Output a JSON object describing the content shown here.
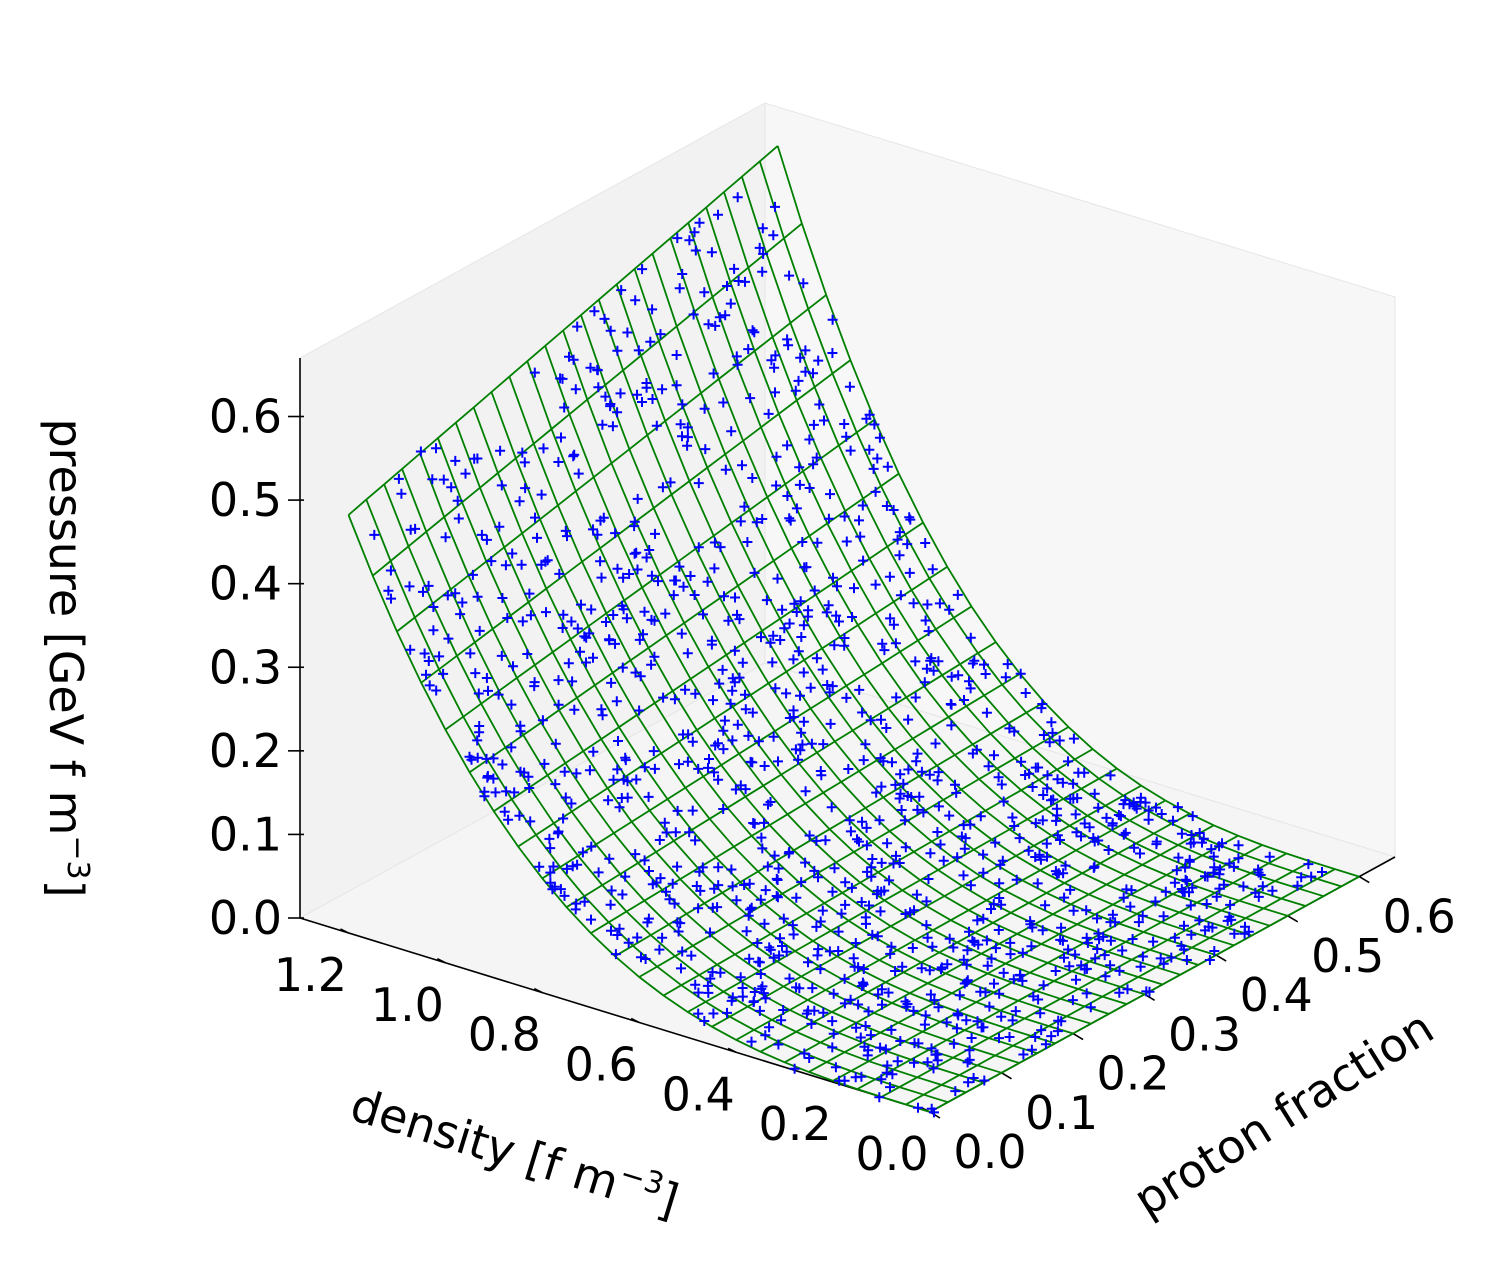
{
  "chart_data": {
    "type": "surface3d-scatter",
    "title": "",
    "xlabel": "density [f m^-3]",
    "ylabel": "proton fraction",
    "zlabel": "pressure [GeV f m^-3]",
    "axes_labels": {
      "x": {
        "main": "density [f m",
        "sup": "−3",
        "close": "]"
      },
      "y": {
        "main": "proton fraction"
      },
      "z": {
        "main": "pressure [GeV f m",
        "sup": "−3",
        "close": "]"
      }
    },
    "xlim": [
      0.0,
      1.3
    ],
    "ylim": [
      0.0,
      0.65
    ],
    "zlim": [
      0.0,
      0.67
    ],
    "x_ticks": [
      0.0,
      0.2,
      0.4,
      0.6,
      0.8,
      1.0,
      1.2
    ],
    "x_tick_labels": [
      "0.0",
      "0.2",
      "0.4",
      "0.6",
      "0.8",
      "1.0",
      "1.2"
    ],
    "y_ticks": [
      0.0,
      0.1,
      0.2,
      0.3,
      0.4,
      0.5,
      0.6
    ],
    "y_tick_labels": [
      "0.0",
      "0.1",
      "0.2",
      "0.3",
      "0.4",
      "0.5",
      "0.6"
    ],
    "z_ticks": [
      0.0,
      0.1,
      0.2,
      0.3,
      0.4,
      0.5,
      0.6
    ],
    "z_tick_labels": [
      "0.0",
      "0.1",
      "0.2",
      "0.3",
      "0.4",
      "0.5",
      "0.6"
    ],
    "surface": {
      "color": "#008000",
      "grid_x": [
        0.0,
        0.05,
        0.1,
        0.15,
        0.2,
        0.25,
        0.3,
        0.35,
        0.4,
        0.45,
        0.5,
        0.55,
        0.6,
        0.65,
        0.7,
        0.75,
        0.8,
        0.85,
        0.9,
        0.95,
        1.0,
        1.05,
        1.1,
        1.15,
        1.2
      ],
      "grid_y": [
        0.0,
        0.025,
        0.05,
        0.075,
        0.1,
        0.125,
        0.15,
        0.175,
        0.2,
        0.225,
        0.25,
        0.275,
        0.3,
        0.325,
        0.35,
        0.375,
        0.4,
        0.425,
        0.45,
        0.475,
        0.5,
        0.525,
        0.55,
        0.575,
        0.6
      ],
      "pressure_at_min_density": 0.0,
      "pressure_at_max_density_y0": 0.5,
      "pressure_at_max_density_y06": 0.66
    },
    "scatter": {
      "color": "#0000ff",
      "marker": "+",
      "description_count": 1200
    },
    "grid": false,
    "pane_colors": [
      "#f2f2f2",
      "#f7f7f7",
      "#f5f5f5"
    ]
  }
}
